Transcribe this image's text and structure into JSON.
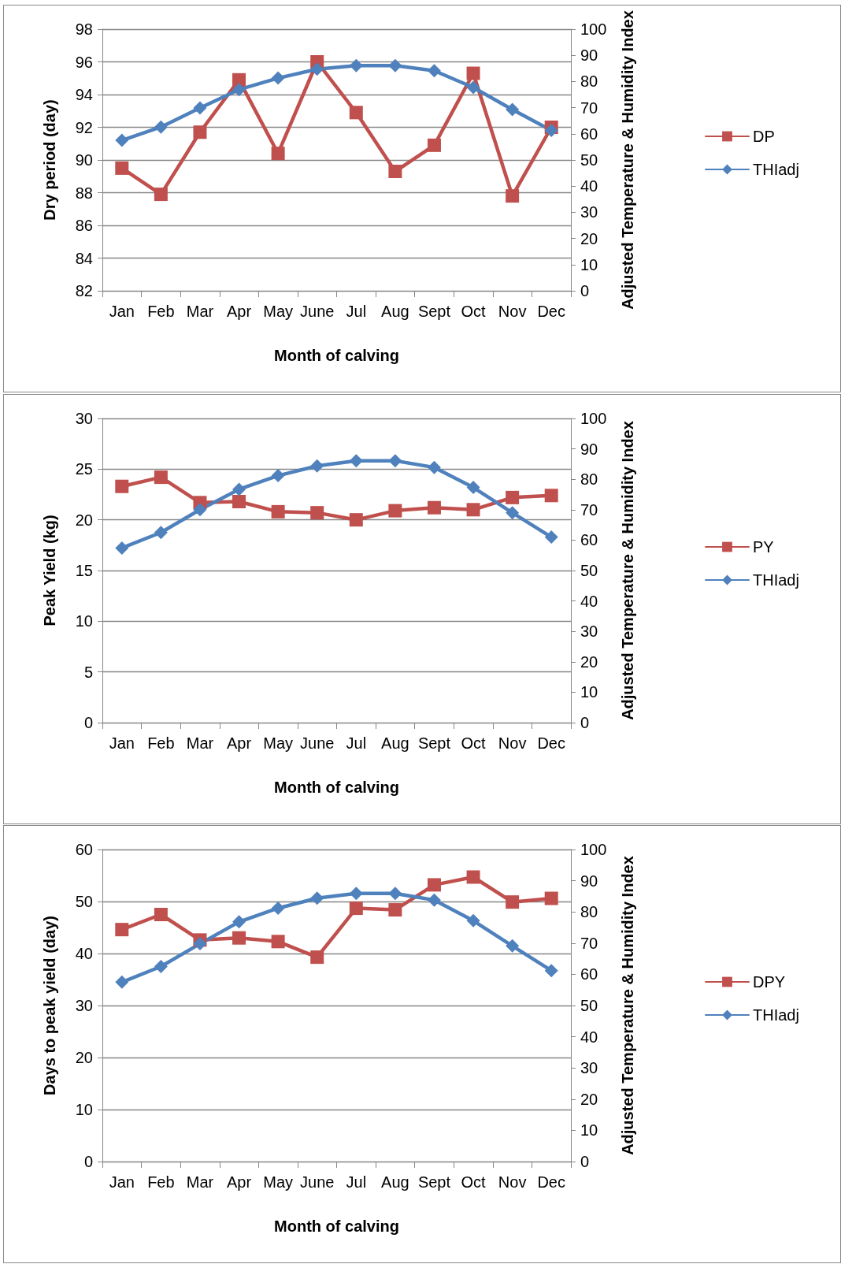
{
  "chart_data": [
    {
      "type": "line",
      "xlabel": "Month of calving",
      "ylabel": "Dry period (day)",
      "y2label": "Adjusted Temperature & Humidity Index",
      "categories": [
        "Jan",
        "Feb",
        "Mar",
        "Apr",
        "May",
        "June",
        "Jul",
        "Aug",
        "Sept",
        "Oct",
        "Nov",
        "Dec"
      ],
      "series": [
        {
          "name": "DP",
          "color": "#c0504d",
          "marker": "square",
          "values": [
            89.5,
            87.9,
            91.7,
            94.9,
            90.4,
            96.0,
            92.9,
            89.3,
            90.9,
            95.3,
            87.8,
            92.0
          ]
        },
        {
          "name": "THIadj",
          "color": "#4f81bd",
          "marker": "diamond",
          "axis": "y2",
          "values": [
            57.5,
            62.6,
            69.9,
            76.9,
            81.3,
            84.7,
            86.1,
            86.1,
            84.1,
            77.7,
            69.3,
            61.3
          ]
        }
      ],
      "ylim": [
        82,
        98
      ],
      "yticks": [
        82,
        84,
        86,
        88,
        90,
        92,
        94,
        96,
        98
      ],
      "y2lim": [
        0,
        100
      ],
      "y2ticks": [
        0,
        10,
        20,
        30,
        40,
        50,
        60,
        70,
        80,
        90,
        100
      ],
      "grid": "y",
      "legend": "right",
      "line_style": "solid"
    },
    {
      "type": "line",
      "xlabel": "Month of calving",
      "ylabel": "Peak Yield (kg)",
      "y2label": "Adjusted Temperature & Humidity Index",
      "categories": [
        "Jan",
        "Feb",
        "Mar",
        "Apr",
        "May",
        "June",
        "Jul",
        "Aug",
        "Sept",
        "Oct",
        "Nov",
        "Dec"
      ],
      "series": [
        {
          "name": "PY",
          "color": "#c0504d",
          "marker": "square",
          "values": [
            23.3,
            24.2,
            21.7,
            21.8,
            20.8,
            20.7,
            20.0,
            20.9,
            21.2,
            21.0,
            22.2,
            22.4
          ]
        },
        {
          "name": "THIadj",
          "color": "#4f81bd",
          "marker": "diamond",
          "axis": "y2",
          "values": [
            57.4,
            62.5,
            70.0,
            76.7,
            81.2,
            84.4,
            86.1,
            86.1,
            83.9,
            77.3,
            69.0,
            61.0
          ]
        }
      ],
      "ylim": [
        0,
        30
      ],
      "yticks": [
        0,
        5,
        10,
        15,
        20,
        25,
        30
      ],
      "y2lim": [
        0,
        100
      ],
      "y2ticks": [
        0,
        10,
        20,
        30,
        40,
        50,
        60,
        70,
        80,
        90,
        100
      ],
      "grid": "y",
      "legend": "right",
      "line_style": "solid"
    },
    {
      "type": "line",
      "xlabel": "Month of calving",
      "ylabel": "Days to peak yield (day)",
      "y2label": "Adjusted Temperature & Humidity Index",
      "categories": [
        "Jan",
        "Feb",
        "Mar",
        "Apr",
        "May",
        "June",
        "Jul",
        "Aug",
        "Sept",
        "Oct",
        "Nov",
        "Dec"
      ],
      "series": [
        {
          "name": "DPY",
          "color": "#c0504d",
          "marker": "square",
          "values": [
            44.6,
            47.5,
            42.6,
            43.0,
            42.3,
            39.3,
            48.7,
            48.4,
            53.2,
            54.7,
            49.9,
            50.6
          ]
        },
        {
          "name": "THIadj",
          "color": "#4f81bd",
          "marker": "diamond",
          "axis": "y2",
          "values": [
            57.5,
            62.5,
            69.8,
            76.8,
            81.2,
            84.4,
            85.9,
            85.9,
            83.8,
            77.2,
            69.1,
            61.2
          ]
        }
      ],
      "ylim": [
        0,
        60
      ],
      "yticks": [
        0,
        10,
        20,
        30,
        40,
        50,
        60
      ],
      "y2lim": [
        0,
        100
      ],
      "y2ticks": [
        0,
        10,
        20,
        30,
        40,
        50,
        60,
        70,
        80,
        90,
        100
      ],
      "grid": "y",
      "legend": "right",
      "line_style": "solid"
    }
  ]
}
